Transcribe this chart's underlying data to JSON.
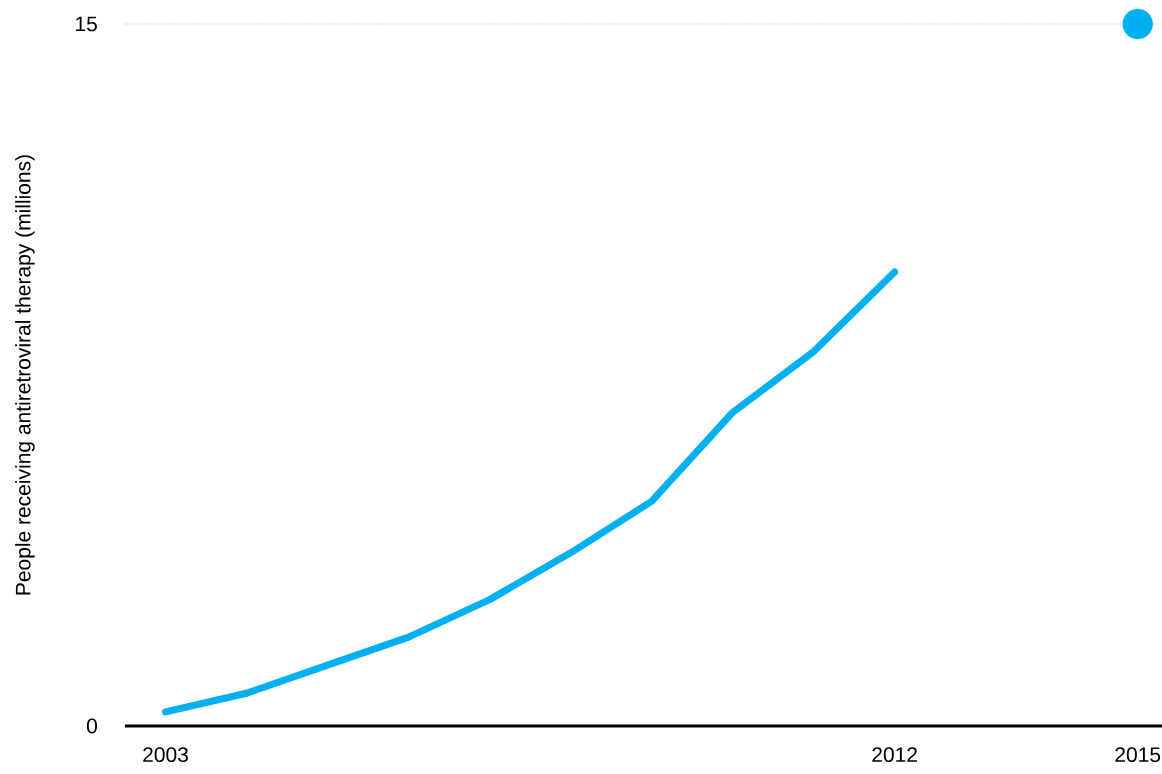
{
  "chart_data": {
    "type": "line",
    "ylabel": "People receiving antiretroviral therapy (millions)",
    "x": [
      2003,
      2004,
      2005,
      2006,
      2007,
      2008,
      2009,
      2010,
      2011,
      2012
    ],
    "series": [
      {
        "color": "#00b0f0",
        "values": [
          0.3,
          0.7,
          1.3,
          1.9,
          2.7,
          3.7,
          4.8,
          6.7,
          8.0,
          9.7
        ]
      },
      {
        "type": "scatter",
        "color": "#00b0f0",
        "x": [
          2015
        ],
        "values": [
          15
        ]
      }
    ],
    "xlim": [
      2002.5,
      2015.3
    ],
    "ylim": [
      0,
      15
    ],
    "xticks": [
      2003,
      2012,
      2015
    ],
    "yticks": [
      0,
      15
    ],
    "grid": "y"
  }
}
